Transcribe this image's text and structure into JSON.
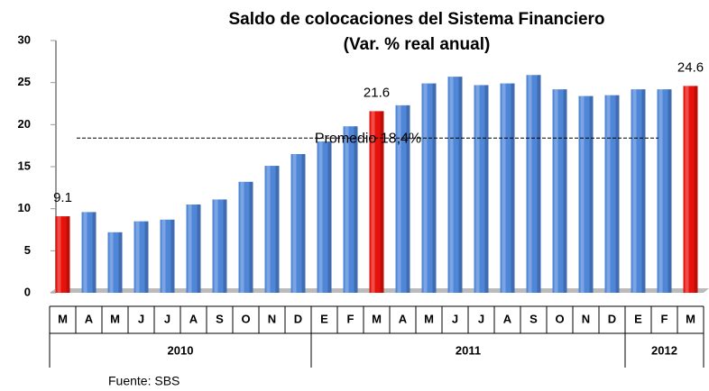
{
  "chart_data": {
    "type": "bar",
    "title": "Saldo de colocaciones del Sistema Financiero",
    "subtitle": "(Var. % real anual)",
    "categories": [
      "M",
      "A",
      "M",
      "J",
      "J",
      "A",
      "S",
      "O",
      "N",
      "D",
      "E",
      "F",
      "M",
      "A",
      "M",
      "J",
      "J",
      "A",
      "S",
      "O",
      "N",
      "D",
      "E",
      "F",
      "M"
    ],
    "category_groups": [
      "2010",
      "2010",
      "2010",
      "2010",
      "2010",
      "2010",
      "2010",
      "2010",
      "2010",
      "2010",
      "2011",
      "2011",
      "2011",
      "2011",
      "2011",
      "2011",
      "2011",
      "2011",
      "2011",
      "2011",
      "2011",
      "2011",
      "2012",
      "2012",
      "2012"
    ],
    "values": [
      9.1,
      9.6,
      7.2,
      8.5,
      8.7,
      10.5,
      11.1,
      13.2,
      15.1,
      16.5,
      18.0,
      19.8,
      21.6,
      22.3,
      24.9,
      25.7,
      24.7,
      24.9,
      25.9,
      24.2,
      23.4,
      23.5,
      24.2,
      24.2,
      24.6
    ],
    "value_labels": [
      "9.1",
      null,
      null,
      null,
      null,
      null,
      null,
      null,
      null,
      null,
      null,
      null,
      "21.6",
      null,
      null,
      null,
      null,
      null,
      null,
      null,
      null,
      null,
      null,
      null,
      "24.6"
    ],
    "colors": [
      "#e8120c",
      "#4f86d8",
      "#4f86d8",
      "#4f86d8",
      "#4f86d8",
      "#4f86d8",
      "#4f86d8",
      "#4f86d8",
      "#4f86d8",
      "#4f86d8",
      "#4f86d8",
      "#4f86d8",
      "#e8120c",
      "#4f86d8",
      "#4f86d8",
      "#4f86d8",
      "#4f86d8",
      "#4f86d8",
      "#4f86d8",
      "#4f86d8",
      "#4f86d8",
      "#4f86d8",
      "#4f86d8",
      "#4f86d8",
      "#e8120c"
    ],
    "average": {
      "value": 18.4,
      "label": "Promedio 18,4%"
    },
    "ylim": [
      0,
      30
    ],
    "yticks": [
      0,
      5,
      10,
      15,
      20,
      25,
      30
    ],
    "source": "Fuente: SBS"
  }
}
